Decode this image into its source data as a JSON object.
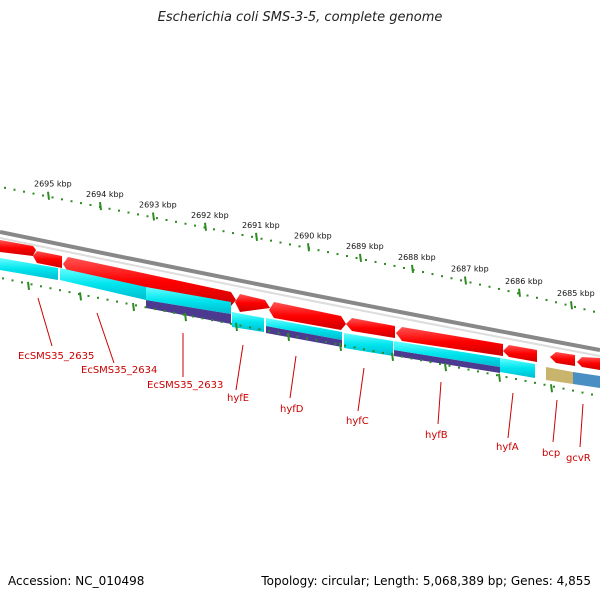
{
  "title": "Escherichia coli SMS-3-5, complete genome",
  "footer": {
    "accession": "Accession: NC_010498",
    "stats": "Topology: circular; Length: 5,068,389 bp; Genes: 4,855"
  },
  "scale_labels": [
    "2695 kbp",
    "2694 kbp",
    "2693 kbp",
    "2692 kbp",
    "2691 kbp",
    "2690 kbp",
    "2689 kbp",
    "2688 kbp",
    "2687 kbp",
    "2686 kbp",
    "2685 kbp"
  ],
  "gene_labels": [
    "EcSMS35_2635",
    "EcSMS35_2634",
    "EcSMS35_2633",
    "hyfE",
    "hyfD",
    "hyfC",
    "hyfB",
    "hyfA",
    "bcp",
    "gcvR"
  ],
  "colors": {
    "cds": "#ff0000",
    "cds_light": "#ff7777",
    "gene_track": "#00e5ee",
    "gene_track_light": "#aaffff",
    "operon": "#4b3a8f",
    "backbone": "#888888",
    "tick": "#2e8b22",
    "label": "#cc0000",
    "bcp_feature": "#c8b46c",
    "gcvR_feature": "#4a8fc4"
  }
}
